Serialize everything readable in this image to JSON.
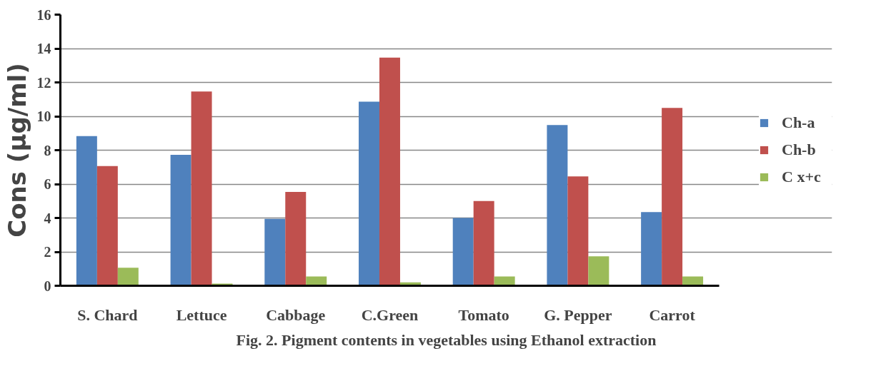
{
  "chart_data": {
    "type": "bar",
    "categories": [
      "S. Chard",
      "Lettuce",
      "Cabbage",
      "C.Green",
      "Tomato",
      "G. Pepper",
      "Carrot"
    ],
    "series": [
      {
        "name": "Ch-a",
        "color": "#4f81bd",
        "values": [
          8.83,
          7.73,
          3.95,
          10.86,
          4.0,
          9.48,
          4.35
        ]
      },
      {
        "name": "Ch-b",
        "color": "#c0504d",
        "values": [
          7.06,
          11.46,
          5.54,
          13.46,
          5.0,
          6.45,
          10.5
        ]
      },
      {
        "name": "C x+c",
        "color": "#9bbb59",
        "values": [
          1.06,
          0.13,
          0.55,
          0.2,
          0.55,
          1.74,
          0.55
        ]
      }
    ],
    "ylabel": "Cons (μg/ml)",
    "ylim": [
      0,
      16
    ],
    "yticks": [
      0,
      2,
      4,
      6,
      8,
      10,
      12,
      14,
      16
    ],
    "grid": "y",
    "legend": "right",
    "annotations": [
      "Fig. 2. Pigment contents in vegetables using Ethanol extraction"
    ]
  }
}
